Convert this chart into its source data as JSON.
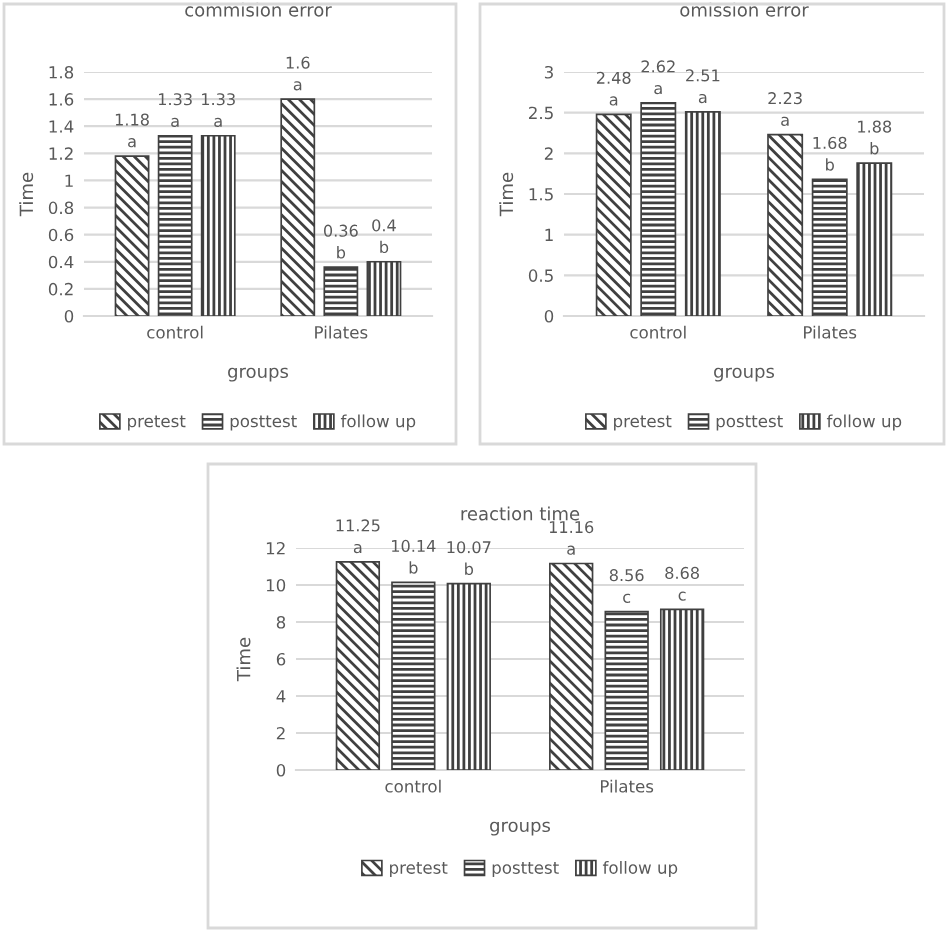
{
  "chart_data": [
    {
      "type": "bar",
      "title": "commision error",
      "xlabel": "groups",
      "ylabel": "Time",
      "categories": [
        "control",
        "Pilates"
      ],
      "ylim": [
        0,
        1.8
      ],
      "yticks": [
        0,
        0.2,
        0.4,
        0.6,
        0.8,
        1,
        1.2,
        1.4,
        1.6,
        1.8
      ],
      "grid": "y",
      "legend": "bottom",
      "series": [
        {
          "name": "pretest",
          "color": "#404040",
          "values": [
            1.18,
            1.6
          ],
          "value_labels": [
            "1.18\na",
            "1.6\na"
          ]
        },
        {
          "name": "posttest",
          "color": "#404040",
          "values": [
            1.33,
            0.36
          ],
          "value_labels": [
            "1.33\na",
            "0.36\nb"
          ]
        },
        {
          "name": "follow up",
          "color": "#404040",
          "values": [
            1.33,
            0.4
          ],
          "value_labels": [
            "1.33\na",
            "0.4\nb"
          ]
        }
      ]
    },
    {
      "type": "bar",
      "title": "omission error",
      "xlabel": "groups",
      "ylabel": "Time",
      "categories": [
        "control",
        "Pilates"
      ],
      "ylim": [
        0,
        3
      ],
      "yticks": [
        0,
        0.5,
        1,
        1.5,
        2,
        2.5,
        3
      ],
      "grid": "y",
      "legend": "bottom",
      "series": [
        {
          "name": "pretest",
          "color": "#404040",
          "values": [
            2.48,
            2.23
          ],
          "value_labels": [
            "2.48\na",
            "2.23\na"
          ]
        },
        {
          "name": "posttest",
          "color": "#404040",
          "values": [
            2.62,
            1.68
          ],
          "value_labels": [
            "2.62\na",
            "1.68\nb"
          ]
        },
        {
          "name": "follow up",
          "color": "#404040",
          "values": [
            2.51,
            1.88
          ],
          "value_labels": [
            "2.51\na",
            "1.88\nb"
          ]
        }
      ]
    },
    {
      "type": "bar",
      "title": "reaction time",
      "xlabel": "groups",
      "ylabel": "Time",
      "categories": [
        "control",
        "Pilates"
      ],
      "ylim": [
        0,
        12
      ],
      "yticks": [
        0,
        2,
        4,
        6,
        8,
        10,
        12
      ],
      "grid": "y",
      "legend": "bottom",
      "series": [
        {
          "name": "pretest",
          "color": "#404040",
          "values": [
            11.25,
            11.16
          ],
          "value_labels": [
            "11.25\na",
            "11.16\na"
          ]
        },
        {
          "name": "posttest",
          "color": "#404040",
          "values": [
            10.14,
            8.56
          ],
          "value_labels": [
            "10.14\nb",
            "8.56\nc"
          ]
        },
        {
          "name": "follow up",
          "color": "#404040",
          "values": [
            10.07,
            8.68
          ],
          "value_labels": [
            "10.07\nb",
            "8.68\nc"
          ]
        }
      ]
    }
  ]
}
